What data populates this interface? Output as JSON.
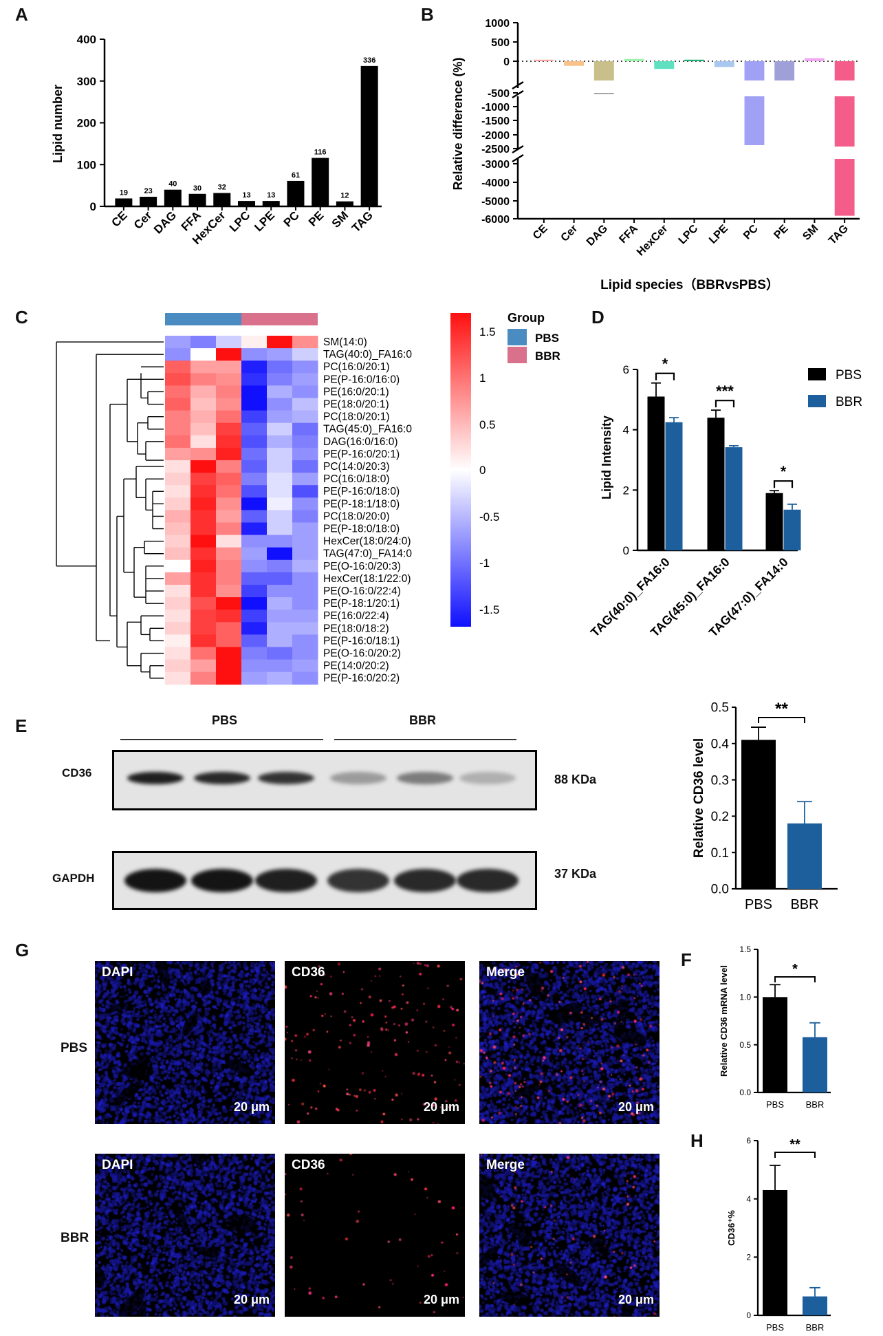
{
  "panels": {
    "A": "A",
    "B": "B",
    "C": "C",
    "D": "D",
    "E": "E",
    "F": "F",
    "G": "G",
    "H": "H"
  },
  "chart_data": [
    {
      "id": "A",
      "type": "bar",
      "categories": [
        "CE",
        "Cer",
        "DAG",
        "FFA",
        "HexCer",
        "LPC",
        "LPE",
        "PC",
        "PE",
        "SM",
        "TAG"
      ],
      "values": [
        19,
        23,
        40,
        30,
        32,
        13,
        13,
        61,
        116,
        12,
        336
      ],
      "ylabel": "Lipid number",
      "yticks": [
        0,
        100,
        200,
        300,
        400
      ],
      "ylim": [
        0,
        400
      ],
      "color": "#000000"
    },
    {
      "id": "B",
      "type": "bar",
      "categories": [
        "CE",
        "Cer",
        "DAG",
        "FFA",
        "HexCer",
        "LPC",
        "LPE",
        "PC",
        "PE",
        "SM",
        "TAG"
      ],
      "values": [
        40,
        -120,
        -600,
        60,
        -200,
        40,
        -150,
        -2400,
        -500,
        80,
        -5800
      ],
      "colors": [
        "#f4a6a0",
        "#f8c28a",
        "#c8bf8a",
        "#9ef0b0",
        "#5fe0c0",
        "#22b07a",
        "#a8c8f0",
        "#a0a0f4",
        "#a0a0d8",
        "#f0a8f0",
        "#f45c8a"
      ],
      "xlabel": "Lipid species（BBRvsPBS）",
      "ylabel": "Relative difference (%)",
      "yticks": [
        "1000",
        "500",
        "0",
        "-500",
        "-1000",
        "-1500",
        "-2000",
        "-2500",
        "-3000",
        "-4000",
        "-5000",
        "-6000"
      ],
      "axis_breaks": [
        [
          -500,
          -1000
        ],
        [
          -2500,
          -3000
        ]
      ]
    },
    {
      "id": "C",
      "type": "heatmap",
      "columns": 6,
      "group_title": "Group",
      "groups": [
        {
          "name": "PBS",
          "color": "#4a8cc2"
        },
        {
          "name": "BBR",
          "color": "#d9708c"
        }
      ],
      "rows": [
        "SM(14:0)",
        "TAG(40:0)_FA16:0",
        "PC(16:0/20:1)",
        "PE(P-16:0/16:0)",
        "PE(16:0/20:1)",
        "PE(18:0/20:1)",
        "PC(18:0/20:1)",
        "TAG(45:0)_FA16:0",
        "DAG(16:0/16:0)",
        "PE(P-16:0/20:1)",
        "PC(14:0/20:3)",
        "PC(16:0/18:0)",
        "PE(P-16:0/18:0)",
        "PE(P-18:1/18:0)",
        "PC(18:0/20:0)",
        "PE(P-18:0/18:0)",
        "HexCer(18:0/24:0)",
        "TAG(47:0)_FA14:0",
        "PE(O-16:0/20:3)",
        "HexCer(18:1/22:0)",
        "PE(O-16:0/22:4)",
        "PE(P-18:1/20:1)",
        "PE(16:0/22:4)",
        "PE(18:0/18:2)",
        "PE(P-16:0/18:1)",
        "PE(O-16:0/20:2)",
        "PE(14:0/20:2)",
        "PE(P-16:0/20:2)"
      ],
      "values": [
        [
          -0.6,
          -0.8,
          -0.3,
          0.1,
          1.5,
          0.7
        ],
        [
          -0.7,
          0.0,
          1.5,
          -0.7,
          -0.6,
          -0.3
        ],
        [
          1.0,
          0.6,
          0.6,
          -1.4,
          -0.9,
          -0.7
        ],
        [
          1.1,
          0.8,
          0.7,
          -1.3,
          -0.8,
          -0.6
        ],
        [
          0.9,
          0.5,
          0.8,
          -1.5,
          -0.5,
          -0.7
        ],
        [
          1.0,
          0.4,
          0.7,
          -1.5,
          -0.7,
          -0.4
        ],
        [
          0.8,
          0.5,
          0.9,
          -1.2,
          -0.6,
          -0.5
        ],
        [
          0.8,
          0.4,
          1.2,
          -1.0,
          -0.3,
          -0.9
        ],
        [
          0.9,
          0.2,
          1.3,
          -1.1,
          -0.5,
          -0.8
        ],
        [
          0.6,
          0.7,
          1.4,
          -0.9,
          -0.3,
          -0.7
        ],
        [
          0.2,
          1.5,
          0.8,
          -1.0,
          -0.3,
          -0.9
        ],
        [
          0.3,
          1.2,
          1.0,
          -0.8,
          -0.2,
          -0.6
        ],
        [
          0.2,
          1.3,
          0.9,
          -1.1,
          -0.2,
          -1.1
        ],
        [
          0.3,
          1.4,
          0.7,
          -1.5,
          -0.1,
          -0.7
        ],
        [
          0.5,
          1.3,
          0.6,
          -1.0,
          -0.3,
          -0.8
        ],
        [
          0.4,
          1.3,
          0.8,
          -1.4,
          -0.3,
          -0.6
        ],
        [
          0.3,
          1.5,
          0.2,
          -0.7,
          -0.7,
          -0.6
        ],
        [
          0.4,
          1.3,
          0.7,
          -0.6,
          -1.5,
          -0.6
        ],
        [
          0.0,
          1.4,
          0.8,
          -0.7,
          -0.8,
          -0.5
        ],
        [
          0.6,
          1.3,
          0.8,
          -1.0,
          -1.0,
          -0.7
        ],
        [
          0.2,
          1.3,
          0.7,
          -1.2,
          -0.7,
          -0.7
        ],
        [
          0.3,
          1.1,
          1.5,
          -1.5,
          -0.5,
          -0.7
        ],
        [
          0.2,
          1.2,
          1.3,
          -1.2,
          -0.6,
          -0.6
        ],
        [
          0.3,
          1.2,
          1.0,
          -1.4,
          -0.5,
          -0.5
        ],
        [
          0.1,
          1.3,
          1.0,
          -1.0,
          -0.5,
          -0.7
        ],
        [
          0.2,
          0.9,
          1.5,
          -0.8,
          -0.9,
          -0.7
        ],
        [
          0.3,
          0.6,
          1.5,
          -0.7,
          -0.7,
          -0.6
        ],
        [
          0.2,
          0.8,
          1.5,
          -0.6,
          -0.5,
          -0.7
        ]
      ],
      "colorbar_ticks": [
        "1.5",
        "1",
        "0.5",
        "0",
        "-0.5",
        "-1",
        "-1.5"
      ],
      "colorscale": [
        "#1010ff",
        "#ffffff",
        "#ff1010"
      ]
    },
    {
      "id": "D",
      "type": "bar",
      "categories": [
        "TAG(40:0)_FA16:0",
        "TAG(45:0)_FA16:0",
        "TAG(47:0)_FA14:0"
      ],
      "series": [
        {
          "name": "PBS",
          "values": [
            5.1,
            4.4,
            1.9
          ],
          "errors": [
            0.45,
            0.25,
            0.08
          ],
          "color": "#000000"
        },
        {
          "name": "BBR",
          "values": [
            4.25,
            3.42,
            1.35
          ],
          "errors": [
            0.15,
            0.05,
            0.18
          ],
          "color": "#1c5f9c"
        }
      ],
      "ylabel": "Lipid Intensity",
      "yticks": [
        0,
        2,
        4,
        6
      ],
      "ylim": [
        0,
        6
      ],
      "significance": [
        "*",
        "***",
        "*"
      ]
    },
    {
      "id": "E",
      "type": "bar",
      "categories": [
        "PBS",
        "BBR"
      ],
      "values": [
        0.41,
        0.18
      ],
      "errors": [
        0.035,
        0.06
      ],
      "colors": [
        "#000000",
        "#1c5f9c"
      ],
      "ylabel": "Relative CD36 level",
      "yticks": [
        "0.0",
        "0.1",
        "0.2",
        "0.3",
        "0.4",
        "0.5"
      ],
      "ylim": [
        0,
        0.5
      ],
      "significance": "**"
    },
    {
      "id": "F",
      "type": "bar",
      "categories": [
        "PBS",
        "BBR"
      ],
      "values": [
        1.0,
        0.58
      ],
      "errors": [
        0.13,
        0.15
      ],
      "colors": [
        "#000000",
        "#1c5f9c"
      ],
      "ylabel": "Relative CD36 mRNA level",
      "yticks": [
        "0.0",
        "0.5",
        "1.0",
        "1.5"
      ],
      "ylim": [
        0,
        1.5
      ],
      "significance": "*"
    },
    {
      "id": "H",
      "type": "bar",
      "categories": [
        "PBS",
        "BBR"
      ],
      "values": [
        4.3,
        0.65
      ],
      "errors": [
        0.85,
        0.3
      ],
      "colors": [
        "#000000",
        "#1c5f9c"
      ],
      "ylabel": "CD36⁺%",
      "yticks": [
        "0",
        "2",
        "4",
        "6"
      ],
      "ylim": [
        0,
        6
      ],
      "significance": "**"
    }
  ],
  "western_blot": {
    "group_labels": [
      "PBS",
      "BBR"
    ],
    "rows": [
      {
        "protein": "CD36",
        "size": "88 KDa",
        "intensity": [
          0.95,
          0.9,
          0.85,
          0.35,
          0.5,
          0.25
        ]
      },
      {
        "protein": "GAPDH",
        "size": "37 KDa",
        "intensity": [
          1.0,
          1.0,
          0.95,
          0.85,
          0.9,
          0.9
        ]
      }
    ]
  },
  "microscopy": {
    "rows": [
      "PBS",
      "BBR"
    ],
    "channels": [
      "DAPI",
      "CD36",
      "Merge"
    ],
    "scale_bar": "20 μm"
  }
}
